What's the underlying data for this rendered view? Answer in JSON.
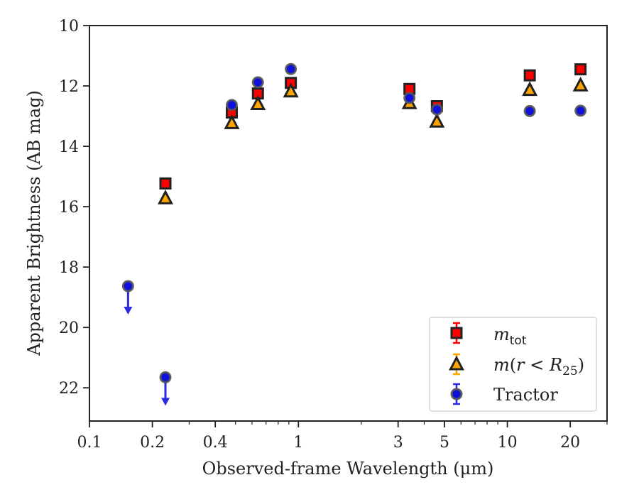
{
  "chart_data": {
    "type": "scatter",
    "title": "",
    "xlabel": "Observed-frame Wavelength (μm)",
    "ylabel": "Apparent Brightness (AB mag)",
    "xscale": "log",
    "xlim": [
      0.1,
      30
    ],
    "ylim": [
      23.1,
      10
    ],
    "y_inverted": true,
    "x_ticks": [
      {
        "value": 0.1,
        "label": "0.1"
      },
      {
        "value": 0.2,
        "label": "0.2"
      },
      {
        "value": 0.4,
        "label": "0.4"
      },
      {
        "value": 1,
        "label": "1"
      },
      {
        "value": 3,
        "label": "3"
      },
      {
        "value": 5,
        "label": "5"
      },
      {
        "value": 10,
        "label": "10"
      },
      {
        "value": 20,
        "label": "20"
      }
    ],
    "y_ticks": [
      {
        "value": 10,
        "label": "10"
      },
      {
        "value": 12,
        "label": "12"
      },
      {
        "value": 14,
        "label": "14"
      },
      {
        "value": 16,
        "label": "16"
      },
      {
        "value": 18,
        "label": "18"
      },
      {
        "value": 20,
        "label": "20"
      },
      {
        "value": 22,
        "label": "22"
      }
    ],
    "legend_position": "lower-right",
    "series": [
      {
        "name": "m_tot",
        "marker": "square",
        "color": "#ff0000",
        "edge_color": "#222222",
        "errbar_color": "#ff0000",
        "points": [
          {
            "x": 0.231,
            "y": 15.23
          },
          {
            "x": 0.48,
            "y": 12.88
          },
          {
            "x": 0.64,
            "y": 12.25
          },
          {
            "x": 0.92,
            "y": 11.9
          },
          {
            "x": 3.4,
            "y": 12.1
          },
          {
            "x": 4.6,
            "y": 12.67
          },
          {
            "x": 12.8,
            "y": 11.65
          },
          {
            "x": 22.4,
            "y": 11.45
          }
        ]
      },
      {
        "name": "m(r < R_25)",
        "marker": "triangle",
        "color": "#ffa500",
        "edge_color": "#222222",
        "errbar_color": "#ffa500",
        "points": [
          {
            "x": 0.231,
            "y": 15.72
          },
          {
            "x": 0.48,
            "y": 13.23
          },
          {
            "x": 0.64,
            "y": 12.6
          },
          {
            "x": 0.92,
            "y": 12.18
          },
          {
            "x": 3.4,
            "y": 12.57
          },
          {
            "x": 4.6,
            "y": 13.18
          },
          {
            "x": 12.8,
            "y": 12.13
          },
          {
            "x": 22.4,
            "y": 11.98
          }
        ]
      },
      {
        "name": "Tractor",
        "marker": "circle",
        "color": "#1010dd",
        "edge_color": "#555555",
        "errbar_color": "#2a2ae0",
        "points": [
          {
            "x": 0.153,
            "y": 18.63,
            "upper_limit": true
          },
          {
            "x": 0.231,
            "y": 21.65,
            "upper_limit": true
          },
          {
            "x": 0.48,
            "y": 12.63
          },
          {
            "x": 0.64,
            "y": 11.88
          },
          {
            "x": 0.92,
            "y": 11.44
          },
          {
            "x": 3.4,
            "y": 12.4
          },
          {
            "x": 4.6,
            "y": 12.78
          },
          {
            "x": 12.8,
            "y": 12.83
          },
          {
            "x": 22.4,
            "y": 12.82
          }
        ]
      }
    ]
  }
}
